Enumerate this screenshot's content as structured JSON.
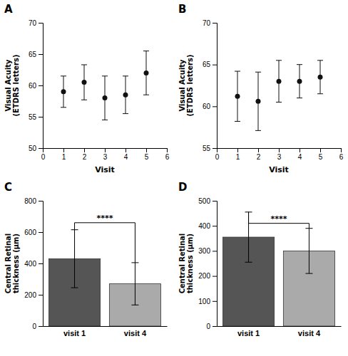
{
  "chart_data": [
    {
      "type": "scatter",
      "title": "A",
      "x": [
        1,
        2,
        3,
        4,
        5
      ],
      "values": [
        59.0,
        60.5,
        58.0,
        58.5,
        62.0
      ],
      "errors": [
        2.5,
        2.8,
        3.5,
        3.0,
        3.5
      ],
      "color": "#111111",
      "xlabel": "Visit",
      "ylabel": "Visual Acuity\n(ETDRS letters)",
      "xlim": [
        0,
        6
      ],
      "ylim": [
        50,
        70
      ],
      "xticks": [
        0,
        1,
        2,
        3,
        4,
        5,
        6
      ],
      "yticks": [
        50,
        55,
        60,
        65,
        70
      ]
    },
    {
      "type": "scatter",
      "title": "B",
      "x": [
        1,
        2,
        3,
        4,
        5
      ],
      "values": [
        61.2,
        60.6,
        63.0,
        63.0,
        63.5
      ],
      "errors": [
        3.0,
        3.5,
        2.5,
        2.0,
        2.0
      ],
      "color": "#111111",
      "xlabel": "Visit",
      "ylabel": "Visual Acuity\n(ETDRS letters)",
      "xlim": [
        0,
        6
      ],
      "ylim": [
        55,
        70
      ],
      "xticks": [
        0,
        1,
        2,
        3,
        4,
        5,
        6
      ],
      "yticks": [
        55,
        60,
        65,
        70
      ]
    },
    {
      "type": "bar",
      "title": "C",
      "categories": [
        "visit 1",
        "visit 4"
      ],
      "values": [
        430,
        270
      ],
      "errors": [
        185,
        135
      ],
      "colors": [
        "#555555",
        "#aaaaaa"
      ],
      "ylabel": "Central Retinal\nthickness (μm)",
      "ylim": [
        0,
        800
      ],
      "yticks": [
        0,
        200,
        400,
        600,
        800
      ],
      "annotations": [
        {
          "text": "****",
          "x": [
            "visit 1",
            "visit 4"
          ],
          "y": 660
        }
      ]
    },
    {
      "type": "bar",
      "title": "D",
      "categories": [
        "visit 1",
        "visit 4"
      ],
      "values": [
        355,
        300
      ],
      "errors": [
        100,
        90
      ],
      "colors": [
        "#555555",
        "#aaaaaa"
      ],
      "ylabel": "Central Retinal\nthickness (μm)",
      "ylim": [
        0,
        500
      ],
      "yticks": [
        0,
        100,
        200,
        300,
        400,
        500
      ],
      "annotations": [
        {
          "text": "****",
          "x": [
            "visit 1",
            "visit 4"
          ],
          "y": 410
        }
      ]
    }
  ]
}
